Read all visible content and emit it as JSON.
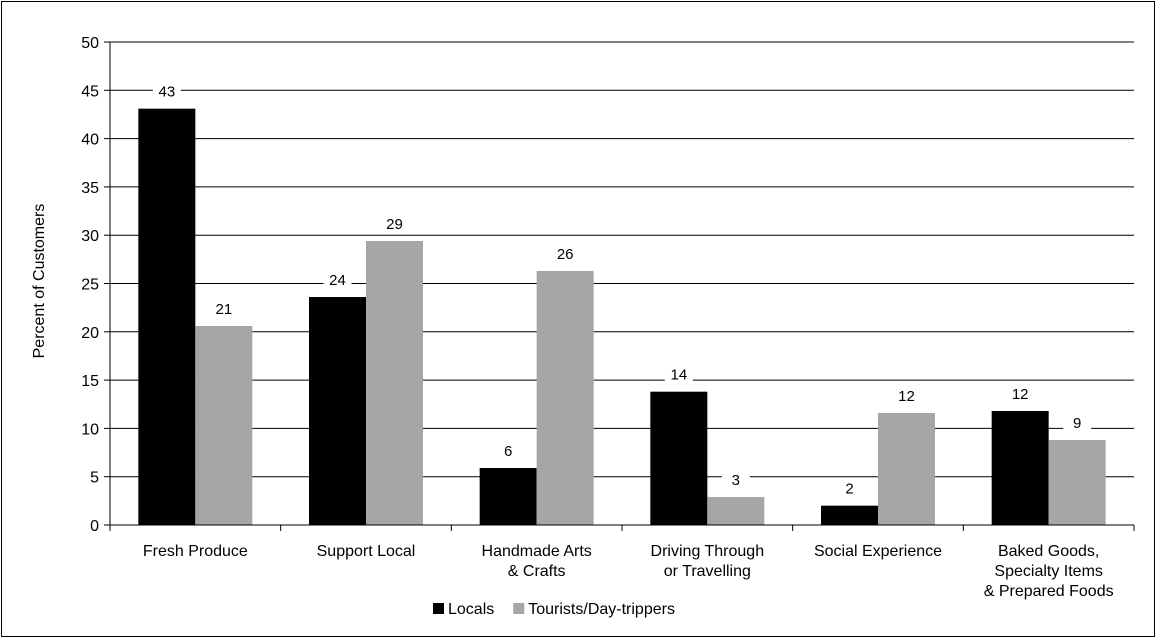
{
  "chart_data": {
    "type": "bar",
    "title": "",
    "xlabel": "",
    "ylabel": "Percent of Customers",
    "ylim": [
      0,
      50
    ],
    "yticks": [
      0,
      5,
      10,
      15,
      20,
      25,
      30,
      35,
      40,
      45,
      50
    ],
    "grid": true,
    "legend_position": "bottom",
    "categories": [
      [
        "Fresh Produce"
      ],
      [
        "Support Local"
      ],
      [
        "Handmade Arts",
        "& Crafts"
      ],
      [
        "Driving Through",
        "or Travelling"
      ],
      [
        "Social Experience"
      ],
      [
        "Baked Goods,",
        "Specialty Items",
        "& Prepared Foods"
      ]
    ],
    "series": [
      {
        "name": "Locals",
        "color": "#000000",
        "values": [
          43.1,
          23.6,
          5.9,
          13.8,
          2.0,
          11.8
        ],
        "labels": [
          "43",
          "24",
          "6",
          "14",
          "2",
          "12"
        ]
      },
      {
        "name": "Tourists/Day-trippers",
        "color": "#a6a6a6",
        "values": [
          20.6,
          29.4,
          26.3,
          2.9,
          11.6,
          8.8
        ],
        "labels": [
          "21",
          "29",
          "26",
          "3",
          "12",
          "9"
        ]
      }
    ]
  }
}
